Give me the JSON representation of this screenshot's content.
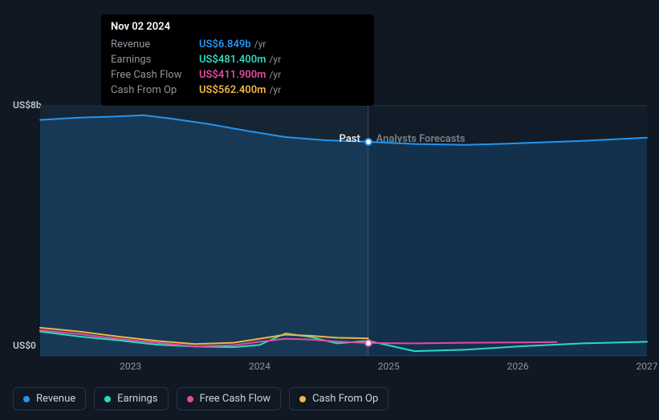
{
  "background_color": "#0f1823",
  "chart": {
    "type": "line-area",
    "x_domain": [
      2022.3,
      2027.0
    ],
    "y_domain": [
      0,
      8
    ],
    "y_unit": "US$b",
    "y_ticks": [
      {
        "value": 0,
        "label": "US$0"
      },
      {
        "value": 8,
        "label": "US$8b"
      }
    ],
    "x_ticks": [
      {
        "value": 2023,
        "label": "2023"
      },
      {
        "value": 2024,
        "label": "2024"
      },
      {
        "value": 2025,
        "label": "2025"
      },
      {
        "value": 2026,
        "label": "2026"
      },
      {
        "value": 2027,
        "label": "2027"
      }
    ],
    "grid_color": "#2a3541",
    "plot_background": "#111c28",
    "past_shade_color": "rgba(70,120,170,0.10)",
    "split_x": 2024.84,
    "zones": {
      "past_label": "Past",
      "past_color": "#e6e8eb",
      "forecast_label": "Analysts Forecasts",
      "forecast_color": "#77808b"
    },
    "series": [
      {
        "id": "revenue",
        "name": "Revenue",
        "color": "#2295f2",
        "line_width": 2,
        "area": true,
        "area_opacity": 0.18,
        "data": [
          [
            2022.3,
            7.55
          ],
          [
            2022.6,
            7.62
          ],
          [
            2022.9,
            7.66
          ],
          [
            2023.1,
            7.7
          ],
          [
            2023.3,
            7.6
          ],
          [
            2023.6,
            7.42
          ],
          [
            2023.9,
            7.2
          ],
          [
            2024.2,
            7.0
          ],
          [
            2024.5,
            6.9
          ],
          [
            2024.84,
            6.849
          ],
          [
            2025.2,
            6.78
          ],
          [
            2025.6,
            6.75
          ],
          [
            2026.0,
            6.8
          ],
          [
            2026.5,
            6.88
          ],
          [
            2027.0,
            6.98
          ]
        ]
      },
      {
        "id": "earnings",
        "name": "Earnings",
        "color": "#2bd9c0",
        "line_width": 2,
        "area": false,
        "data": [
          [
            2022.3,
            0.78
          ],
          [
            2022.6,
            0.62
          ],
          [
            2022.9,
            0.5
          ],
          [
            2023.2,
            0.36
          ],
          [
            2023.5,
            0.3
          ],
          [
            2023.8,
            0.28
          ],
          [
            2024.0,
            0.35
          ],
          [
            2024.2,
            0.72
          ],
          [
            2024.4,
            0.6
          ],
          [
            2024.6,
            0.4
          ],
          [
            2024.84,
            0.4814
          ],
          [
            2025.2,
            0.15
          ],
          [
            2025.6,
            0.2
          ],
          [
            2026.0,
            0.3
          ],
          [
            2026.5,
            0.4
          ],
          [
            2027.0,
            0.45
          ]
        ]
      },
      {
        "id": "fcf",
        "name": "Free Cash Flow",
        "color": "#e64aa0",
        "line_width": 2,
        "area": false,
        "data": [
          [
            2022.3,
            0.82
          ],
          [
            2022.6,
            0.7
          ],
          [
            2022.9,
            0.55
          ],
          [
            2023.2,
            0.42
          ],
          [
            2023.5,
            0.3
          ],
          [
            2023.8,
            0.34
          ],
          [
            2024.0,
            0.45
          ],
          [
            2024.2,
            0.55
          ],
          [
            2024.4,
            0.52
          ],
          [
            2024.6,
            0.46
          ],
          [
            2024.84,
            0.4119
          ],
          [
            2025.2,
            0.4
          ],
          [
            2025.6,
            0.42
          ],
          [
            2026.0,
            0.43
          ],
          [
            2026.3,
            0.44
          ]
        ]
      },
      {
        "id": "cfo",
        "name": "Cash From Op",
        "color": "#f2b544",
        "line_width": 2,
        "area": false,
        "data": [
          [
            2022.3,
            0.9
          ],
          [
            2022.6,
            0.78
          ],
          [
            2022.9,
            0.62
          ],
          [
            2023.2,
            0.48
          ],
          [
            2023.5,
            0.38
          ],
          [
            2023.8,
            0.42
          ],
          [
            2024.0,
            0.55
          ],
          [
            2024.2,
            0.68
          ],
          [
            2024.4,
            0.64
          ],
          [
            2024.6,
            0.58
          ],
          [
            2024.84,
            0.5624
          ]
        ]
      }
    ],
    "marker": {
      "x": 2024.84,
      "revenue_y": 6.849,
      "fcf_y": 0.4119,
      "ring_color": "#2295f2",
      "ring_color2": "#e64aa0"
    }
  },
  "tooltip": {
    "date": "Nov 02 2024",
    "rows": [
      {
        "label": "Revenue",
        "value": "US$6.849b",
        "color": "#2295f2",
        "unit": "/yr"
      },
      {
        "label": "Earnings",
        "value": "US$481.400m",
        "color": "#2bd9c0",
        "unit": "/yr"
      },
      {
        "label": "Free Cash Flow",
        "value": "US$411.900m",
        "color": "#e64aa0",
        "unit": "/yr"
      },
      {
        "label": "Cash From Op",
        "value": "US$562.400m",
        "color": "#f2b544",
        "unit": "/yr"
      }
    ]
  },
  "legend": [
    {
      "id": "revenue",
      "label": "Revenue",
      "color": "#2295f2"
    },
    {
      "id": "earnings",
      "label": "Earnings",
      "color": "#2bd9c0"
    },
    {
      "id": "fcf",
      "label": "Free Cash Flow",
      "color": "#e64aa0"
    },
    {
      "id": "cfo",
      "label": "Cash From Op",
      "color": "#f2b544"
    }
  ]
}
